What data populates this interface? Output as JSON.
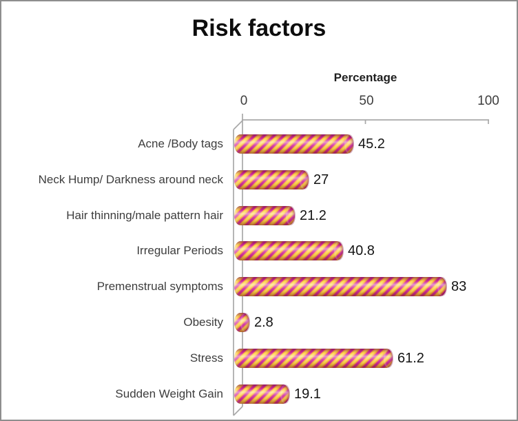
{
  "chart_data": {
    "type": "bar",
    "orientation": "horizontal",
    "title": "Risk factors",
    "xlabel": "Percentage",
    "xlim": [
      0,
      100
    ],
    "tick_labels": [
      "0",
      "50",
      "100"
    ],
    "categories": [
      "Acne /Body tags",
      "Neck Hump/ Darkness around neck",
      "Hair thinning/male pattern hair",
      "Irregular Periods",
      "Premenstrual symptoms",
      "Obesity",
      "Stress",
      "Sudden Weight Gain"
    ],
    "values": [
      45.2,
      27,
      21.2,
      40.8,
      83,
      2.8,
      61.2,
      19.1
    ],
    "value_labels_shown": true,
    "legend": "none",
    "grid": "off",
    "style": {
      "pattern": "diagonal-candy-stripes",
      "stripe_color_1": "#e23aa0",
      "stripe_color_2": "#fdc22f",
      "axis_line_color": "#a8a8a8",
      "frame_border_color": "#8e8e8e",
      "effect": "3d-cylinder"
    }
  }
}
